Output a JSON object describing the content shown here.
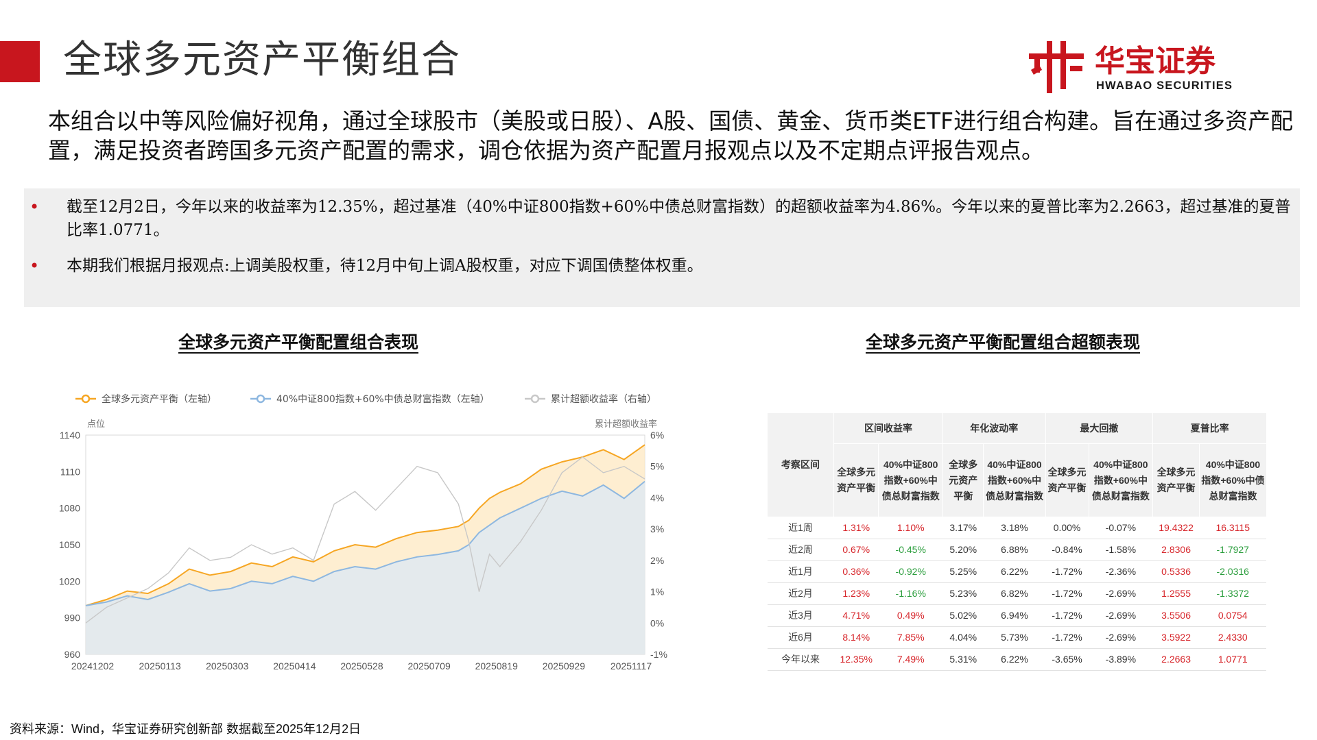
{
  "page_title": "全球多元资产平衡组合",
  "logo": {
    "cn": "华宝证券",
    "en": "HWABAO SECURITIES"
  },
  "intro": "本组合以中等风险偏好视角，通过全球股市（美股或日股）、A股、国债、黄金、货币类ETF进行组合构建。旨在通过多资产配置，满足投资者跨国多元资产配置的需求，调仓依据为资产配置月报观点以及不定期点评报告观点。",
  "notes": [
    "截至12月2日，今年以来的收益率为12.35%，超过基准（40%中证800指数+60%中债总财富指数）的超额收益率为4.86%。今年以来的夏普比率为2.2663，超过基准的夏普比率1.0771。",
    "本期我们根据月报观点:上调美股权重，待12月中旬上调A股权重，对应下调国债整体权重。"
  ],
  "chart_title": "全球多元资产平衡配置组合表现",
  "table_title": "全球多元资产平衡配置组合超额表现",
  "source": "资料来源：Wind，华宝证券研究创新部   数据截至2025年12月2日",
  "colors": {
    "brand_red": "#c8161e",
    "series1": "#f6a623",
    "series2": "#8db7e0",
    "series3": "#c8c8c8",
    "positive": "#d7262b",
    "negative": "#2a9d3c"
  },
  "chart_data": {
    "type": "line",
    "left_axis_label": "点位",
    "right_axis_label": "累计超额收益率",
    "ylim": [
      960,
      1140
    ],
    "yticks": [
      "1140",
      "1110",
      "1080",
      "1050",
      "1020",
      "990",
      "960"
    ],
    "y2lim": [
      -1,
      6
    ],
    "y2ticks": [
      "6%",
      "5%",
      "4%",
      "3%",
      "2%",
      "1%",
      "0%",
      "-1%"
    ],
    "xticks": [
      "20241202",
      "20250113",
      "20250303",
      "20250414",
      "20250528",
      "20250709",
      "20250819",
      "20250929",
      "20251117"
    ],
    "x": [
      0,
      10,
      20,
      30,
      40,
      50,
      60,
      70,
      80,
      90,
      100,
      110,
      120,
      130,
      140,
      150,
      160,
      170,
      180,
      185,
      190,
      195,
      200,
      210,
      220,
      230,
      240,
      250,
      260,
      270
    ],
    "series": [
      {
        "name": "全球多元资产平衡（左轴）",
        "axis": "left",
        "values": [
          1000,
          1005,
          1012,
          1010,
          1018,
          1030,
          1025,
          1028,
          1035,
          1032,
          1040,
          1036,
          1045,
          1050,
          1048,
          1055,
          1060,
          1062,
          1065,
          1070,
          1080,
          1088,
          1093,
          1100,
          1112,
          1118,
          1122,
          1128,
          1120,
          1132
        ]
      },
      {
        "name": "40%中证800指数+60%中债总财富指数（左轴）",
        "axis": "left",
        "values": [
          1000,
          1003,
          1008,
          1005,
          1011,
          1018,
          1012,
          1014,
          1020,
          1018,
          1024,
          1020,
          1028,
          1032,
          1030,
          1036,
          1040,
          1042,
          1045,
          1050,
          1060,
          1066,
          1072,
          1080,
          1088,
          1094,
          1090,
          1099,
          1088,
          1102
        ]
      },
      {
        "name": "累计超额收益率（右轴）",
        "axis": "right",
        "values": [
          0.0,
          0.5,
          0.8,
          1.1,
          1.6,
          2.4,
          2.0,
          2.1,
          2.5,
          2.2,
          2.4,
          2.0,
          3.8,
          4.2,
          3.6,
          4.3,
          5.0,
          4.8,
          3.8,
          2.6,
          1.0,
          2.2,
          1.8,
          2.6,
          3.6,
          4.8,
          5.3,
          4.8,
          5.0,
          4.6
        ]
      }
    ],
    "legend_position": "top",
    "grid": false
  },
  "table": {
    "group_headers": [
      "考察区间",
      "区间收益率",
      "年化波动率",
      "最大回撤",
      "夏普比率"
    ],
    "sub_headers": [
      "全球多元资产平衡",
      "40%中证800指数+60%中债总财富指数"
    ],
    "rows": [
      {
        "period": "近1周",
        "values": [
          "1.31%",
          "1.10%",
          "3.17%",
          "3.18%",
          "0.00%",
          "-0.07%",
          "19.4322",
          "16.3115"
        ]
      },
      {
        "period": "近2周",
        "values": [
          "0.67%",
          "-0.45%",
          "5.20%",
          "6.88%",
          "-0.84%",
          "-1.58%",
          "2.8306",
          "-1.7927"
        ]
      },
      {
        "period": "近1月",
        "values": [
          "0.36%",
          "-0.92%",
          "5.25%",
          "6.22%",
          "-1.72%",
          "-2.36%",
          "0.5336",
          "-2.0316"
        ]
      },
      {
        "period": "近2月",
        "values": [
          "1.23%",
          "-1.16%",
          "5.23%",
          "6.82%",
          "-1.72%",
          "-2.69%",
          "1.2555",
          "-1.3372"
        ]
      },
      {
        "period": "近3月",
        "values": [
          "4.71%",
          "0.49%",
          "5.02%",
          "6.94%",
          "-1.72%",
          "-2.69%",
          "3.5506",
          "0.0754"
        ]
      },
      {
        "period": "近6月",
        "values": [
          "8.14%",
          "7.85%",
          "4.04%",
          "5.73%",
          "-1.72%",
          "-2.69%",
          "3.5922",
          "2.4330"
        ]
      },
      {
        "period": "今年以来",
        "values": [
          "12.35%",
          "7.49%",
          "5.31%",
          "6.22%",
          "-3.65%",
          "-3.89%",
          "2.2663",
          "1.0771"
        ]
      }
    ]
  }
}
